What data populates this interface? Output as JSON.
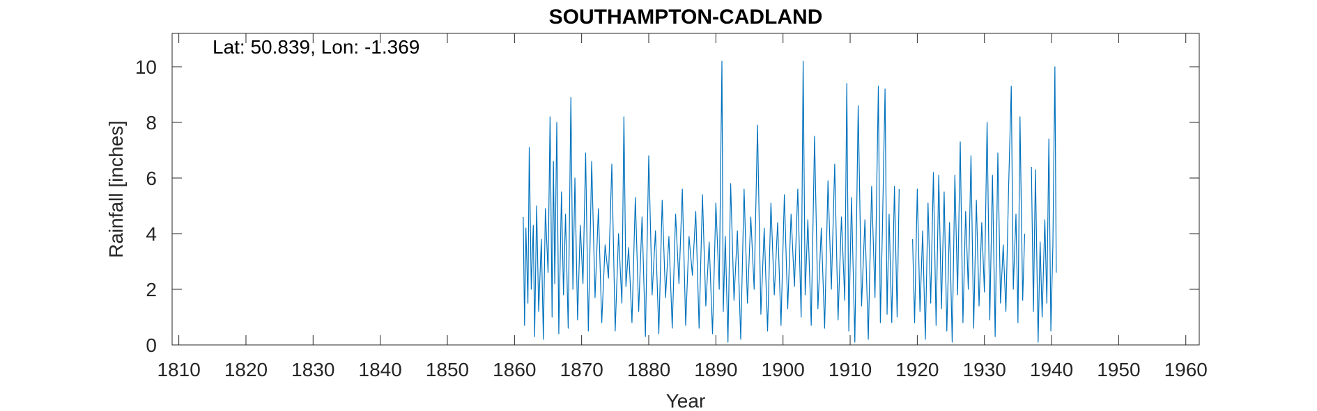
{
  "chart_data": {
    "type": "line",
    "title": "SOUTHAMPTON-CADLAND",
    "annotation": "Lat: 50.839, Lon: -1.369",
    "xlabel": "Year",
    "ylabel": "Rainfall [inches]",
    "xlim": [
      1809,
      1962
    ],
    "ylim": [
      0,
      11.2
    ],
    "xticks": [
      1810,
      1820,
      1830,
      1840,
      1850,
      1860,
      1870,
      1880,
      1890,
      1900,
      1910,
      1920,
      1930,
      1940,
      1950,
      1960
    ],
    "yticks": [
      0,
      2,
      4,
      6,
      8,
      10
    ],
    "grid": false,
    "line_color": "#0072BD",
    "series": [
      {
        "segments": [
          {
            "x": [
              1861.3,
              1861.5,
              1861.7,
              1862.0,
              1862.2,
              1862.5,
              1862.8,
              1863.0,
              1863.3,
              1863.6,
              1864.0,
              1864.3,
              1864.6,
              1865.0,
              1865.3,
              1865.6,
              1865.8,
              1866.0,
              1866.3,
              1866.6,
              1867.0,
              1867.3,
              1867.6,
              1868.0,
              1868.4,
              1868.7,
              1869.0,
              1869.4,
              1869.8,
              1870.2,
              1870.6,
              1871.0,
              1871.5,
              1872.0,
              1872.5,
              1873.0,
              1873.5,
              1874.0,
              1874.5,
              1875.0,
              1875.5,
              1876.0,
              1876.3,
              1876.6,
              1877.0,
              1877.5,
              1878.0,
              1878.5,
              1879.0,
              1879.5,
              1880.0,
              1880.5,
              1881.0,
              1881.5,
              1882.0,
              1882.5,
              1883.0,
              1883.5,
              1884.0,
              1884.5,
              1885.0,
              1885.5,
              1886.0,
              1886.5,
              1887.0,
              1887.5,
              1888.0,
              1888.5,
              1889.0,
              1889.5,
              1890.0,
              1890.5,
              1890.9,
              1891.1,
              1891.4,
              1891.8,
              1892.2,
              1892.7,
              1893.2,
              1893.7,
              1894.2,
              1894.7,
              1895.2,
              1895.7,
              1896.2,
              1896.7,
              1897.2,
              1897.7,
              1898.2,
              1898.7,
              1899.2,
              1899.7,
              1900.2,
              1900.7,
              1901.2,
              1901.7,
              1902.2,
              1902.7,
              1903.0,
              1903.3,
              1903.7,
              1904.2,
              1904.7,
              1905.2,
              1905.7,
              1906.2,
              1906.7,
              1907.2,
              1907.7,
              1908.2,
              1908.7,
              1909.2,
              1909.5,
              1909.8,
              1910.2,
              1910.7,
              1911.2,
              1911.7,
              1912.2,
              1912.7,
              1913.2,
              1913.7,
              1914.2,
              1914.5,
              1914.8,
              1915.2,
              1915.5,
              1915.8,
              1916.2,
              1916.6,
              1917.0,
              1917.3
            ],
            "y": [
              4.6,
              0.7,
              4.2,
              1.5,
              7.1,
              2.0,
              4.3,
              0.3,
              5.0,
              1.2,
              3.8,
              0.2,
              4.9,
              2.6,
              8.2,
              1.0,
              6.6,
              2.2,
              8.0,
              0.4,
              5.5,
              1.8,
              4.7,
              0.6,
              8.9,
              2.0,
              6.0,
              0.9,
              4.3,
              2.2,
              6.9,
              0.5,
              6.6,
              1.7,
              4.9,
              0.8,
              3.6,
              2.4,
              6.5,
              0.5,
              4.0,
              1.5,
              8.2,
              2.1,
              3.5,
              0.8,
              5.3,
              1.2,
              4.6,
              0.3,
              6.8,
              1.8,
              4.1,
              0.4,
              5.2,
              1.7,
              3.9,
              0.6,
              4.7,
              2.2,
              5.6,
              0.7,
              3.9,
              2.5,
              4.8,
              0.6,
              5.4,
              1.4,
              3.7,
              0.4,
              5.1,
              2.0,
              10.2,
              1.2,
              3.9,
              0.1,
              5.8,
              1.6,
              4.1,
              0.2,
              5.6,
              1.5,
              4.6,
              2.0,
              7.9,
              1.1,
              4.2,
              0.5,
              5.1,
              1.8,
              4.4,
              0.7,
              5.4,
              1.3,
              4.7,
              2.1,
              5.6,
              1.0,
              10.2,
              1.8,
              4.5,
              0.7,
              7.5,
              1.3,
              4.2,
              0.6,
              5.9,
              2.0,
              6.5,
              0.9,
              4.6,
              1.6,
              9.4,
              0.5,
              5.3,
              0.1,
              8.6,
              1.4,
              4.5,
              0.2,
              5.7,
              1.7,
              9.3,
              0.8,
              4.1,
              9.2,
              1.1,
              4.7,
              0.8,
              5.7,
              1.0,
              5.6
            ]
          },
          {
            "x": [
              1919.3,
              1919.6,
              1920.0,
              1920.4,
              1920.8,
              1921.2,
              1921.6,
              1922.0,
              1922.4,
              1922.8,
              1923.2,
              1923.6,
              1924.0,
              1924.4,
              1924.8,
              1925.2,
              1925.6,
              1926.0,
              1926.4,
              1926.8,
              1927.2,
              1927.6,
              1928.0,
              1928.4,
              1928.8,
              1929.2,
              1929.6,
              1930.0,
              1930.4,
              1930.8,
              1931.2,
              1931.6,
              1932.0,
              1932.4,
              1932.8,
              1933.2,
              1933.6,
              1934.0,
              1934.3,
              1934.7,
              1935.0,
              1935.3,
              1935.7,
              1936.0
            ],
            "y": [
              3.8,
              0.8,
              5.6,
              1.2,
              4.1,
              0.2,
              5.1,
              1.5,
              6.2,
              0.7,
              6.1,
              1.3,
              5.5,
              0.5,
              4.4,
              0.1,
              6.1,
              1.8,
              7.3,
              0.8,
              4.8,
              2.0,
              6.8,
              0.6,
              5.2,
              1.4,
              4.4,
              1.9,
              8.0,
              0.9,
              6.1,
              0.3,
              6.9,
              1.5,
              3.6,
              1.2,
              5.6,
              9.3,
              2.0,
              4.7,
              0.8,
              8.2,
              1.6,
              4.0
            ]
          },
          {
            "x": [
              1937.0,
              1937.3,
              1937.6,
              1938.0,
              1938.3,
              1938.6,
              1939.0,
              1939.3,
              1939.6,
              1939.9,
              1940.2,
              1940.5,
              1940.7
            ],
            "y": [
              6.4,
              1.2,
              6.3,
              0.1,
              3.7,
              1.0,
              4.5,
              1.5,
              7.4,
              0.5,
              3.6,
              10.0,
              2.6
            ]
          }
        ]
      }
    ]
  }
}
